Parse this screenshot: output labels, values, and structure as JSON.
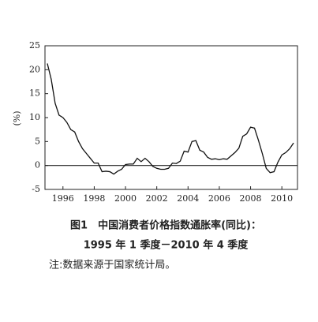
{
  "chart_data": {
    "type": "line",
    "ylabel": "(%)",
    "caption": [
      "图1　中国消费者价格指数通胀率(同比)：",
      "1995 年 1 季度－2010 年 4 季度"
    ],
    "note": "注:数据来源于国家统计局。",
    "x": [
      1995,
      1995.25,
      1995.5,
      1995.75,
      1996,
      1996.25,
      1996.5,
      1996.75,
      1997,
      1997.25,
      1997.5,
      1997.75,
      1998,
      1998.25,
      1998.5,
      1998.75,
      1999,
      1999.25,
      1999.5,
      1999.75,
      2000,
      2000.25,
      2000.5,
      2000.75,
      2001,
      2001.25,
      2001.5,
      2001.75,
      2002,
      2002.25,
      2002.5,
      2002.75,
      2003,
      2003.25,
      2003.5,
      2003.75,
      2004,
      2004.25,
      2004.5,
      2004.75,
      2005,
      2005.25,
      2005.5,
      2005.75,
      2006,
      2006.25,
      2006.5,
      2006.75,
      2007,
      2007.25,
      2007.5,
      2007.75,
      2008,
      2008.25,
      2008.5,
      2008.75,
      2009,
      2009.25,
      2009.5,
      2009.75,
      2010,
      2010.25,
      2010.5,
      2010.75
    ],
    "series": [
      {
        "color": "#111111",
        "values": [
          21.3,
          18,
          13,
          10.5,
          10,
          9,
          7.5,
          7,
          5,
          3.5,
          2.5,
          1.5,
          0.5,
          0.5,
          -1.3,
          -1.2,
          -1.3,
          -1.8,
          -1.2,
          -0.8,
          0.2,
          0.3,
          0.3,
          1.5,
          0.8,
          1.5,
          0.8,
          -0.2,
          -0.6,
          -0.8,
          -0.8,
          -0.6,
          0.5,
          0.4,
          0.9,
          3.0,
          2.8,
          5.0,
          5.2,
          3.2,
          2.8,
          1.7,
          1.3,
          1.4,
          1.2,
          1.4,
          1.3,
          2.0,
          2.7,
          3.6,
          6.1,
          6.6,
          8.0,
          7.8,
          5.3,
          2.5,
          -0.6,
          -1.5,
          -1.3,
          0.7,
          2.2,
          2.7,
          3.5,
          4.7
        ]
      }
    ],
    "xlim": [
      1994.85,
      2011.0
    ],
    "xticks": [
      1996,
      1998,
      2000,
      2002,
      2004,
      2006,
      2008,
      2010
    ],
    "ylim": [
      -5,
      25
    ],
    "yticks": [
      -5,
      0,
      5,
      10,
      15,
      20,
      25
    ],
    "zero_line": true
  }
}
